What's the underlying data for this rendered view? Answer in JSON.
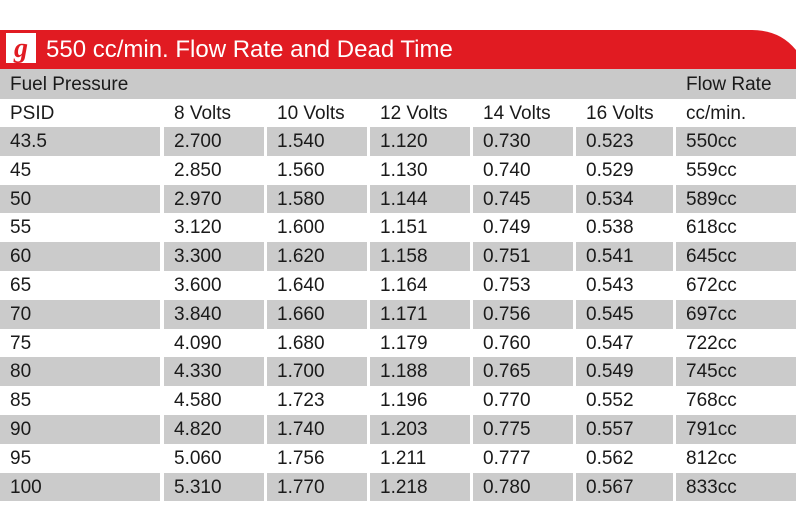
{
  "title": "550 cc/min. Flow Rate and Dead Time",
  "brand_color": "#e11b22",
  "header": {
    "left": "Fuel Pressure",
    "right": "Flow Rate"
  },
  "columns": [
    "PSID",
    "8 Volts",
    "10 Volts",
    "12 Volts",
    "14 Volts",
    "16 Volts",
    "cc/min."
  ],
  "chart_data": {
    "type": "table",
    "title": "550 cc/min. Flow Rate and Dead Time",
    "columns": [
      "PSID",
      "8 Volts",
      "10 Volts",
      "12 Volts",
      "14 Volts",
      "16 Volts",
      "cc/min."
    ],
    "rows": [
      [
        "43.5",
        "2.700",
        "1.540",
        "1.120",
        "0.730",
        "0.523",
        "550cc"
      ],
      [
        "45",
        "2.850",
        "1.560",
        "1.130",
        "0.740",
        "0.529",
        "559cc"
      ],
      [
        "50",
        "2.970",
        "1.580",
        "1.144",
        "0.745",
        "0.534",
        "589cc"
      ],
      [
        "55",
        "3.120",
        "1.600",
        "1.151",
        "0.749",
        "0.538",
        "618cc"
      ],
      [
        "60",
        "3.300",
        "1.620",
        "1.158",
        "0.751",
        "0.541",
        "645cc"
      ],
      [
        "65",
        "3.600",
        "1.640",
        "1.164",
        "0.753",
        "0.543",
        "672cc"
      ],
      [
        "70",
        "3.840",
        "1.660",
        "1.171",
        "0.756",
        "0.545",
        "697cc"
      ],
      [
        "75",
        "4.090",
        "1.680",
        "1.179",
        "0.760",
        "0.547",
        "722cc"
      ],
      [
        "80",
        "4.330",
        "1.700",
        "1.188",
        "0.765",
        "0.549",
        "745cc"
      ],
      [
        "85",
        "4.580",
        "1.723",
        "1.196",
        "0.770",
        "0.552",
        "768cc"
      ],
      [
        "90",
        "4.820",
        "1.740",
        "1.203",
        "0.775",
        "0.557",
        "791cc"
      ],
      [
        "95",
        "5.060",
        "1.756",
        "1.211",
        "0.777",
        "0.562",
        "812cc"
      ],
      [
        "100",
        "5.310",
        "1.770",
        "1.218",
        "0.780",
        "0.567",
        "833cc"
      ]
    ]
  }
}
